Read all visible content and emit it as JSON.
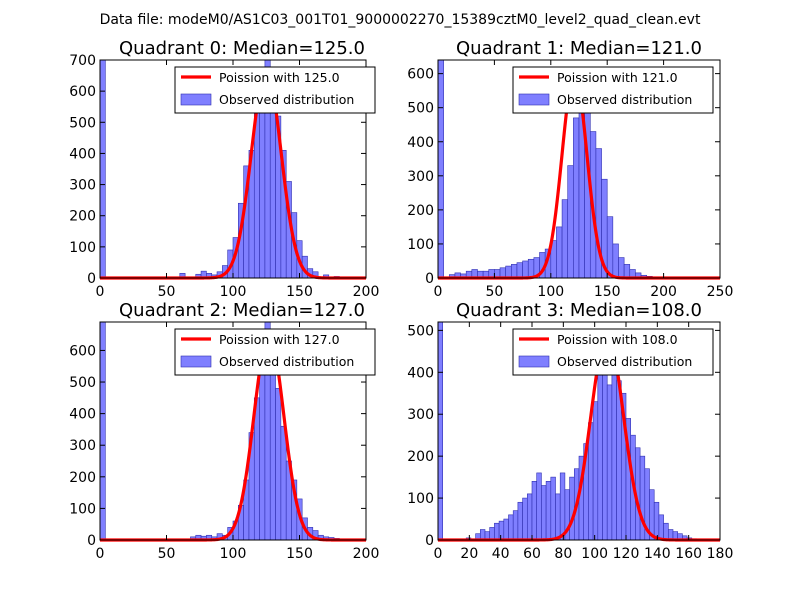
{
  "figure": {
    "suptitle": "Data file: modeM0/AS1C03_001T01_9000002270_15389cztM0_level2_quad_clean.evt"
  },
  "colors": {
    "bar_fill": "#7f7fff",
    "bar_edge": "#2f2fb0",
    "curve": "#ff0000"
  },
  "chart_data": [
    {
      "type": "bar",
      "title": "Quadrant 0: Median=125.0",
      "xlim": [
        0,
        200
      ],
      "ylim": [
        0,
        700
      ],
      "xticks": [
        0,
        50,
        100,
        150,
        200
      ],
      "yticks": [
        0,
        100,
        200,
        300,
        400,
        500,
        600,
        700
      ],
      "bin_width": 4,
      "bins": [
        [
          0,
          700
        ],
        [
          60,
          15
        ],
        [
          72,
          12
        ],
        [
          76,
          22
        ],
        [
          80,
          15
        ],
        [
          84,
          10
        ],
        [
          88,
          20
        ],
        [
          92,
          40
        ],
        [
          96,
          90
        ],
        [
          100,
          130
        ],
        [
          104,
          240
        ],
        [
          108,
          360
        ],
        [
          112,
          410
        ],
        [
          116,
          600
        ],
        [
          120,
          660
        ],
        [
          124,
          700
        ],
        [
          128,
          600
        ],
        [
          132,
          520
        ],
        [
          136,
          410
        ],
        [
          140,
          310
        ],
        [
          144,
          210
        ],
        [
          148,
          120
        ],
        [
          152,
          70
        ],
        [
          156,
          30
        ],
        [
          160,
          20
        ],
        [
          168,
          10
        ],
        [
          176,
          5
        ],
        [
          184,
          3
        ]
      ],
      "poisson_mean": 125,
      "poisson_peak": 665,
      "legend": [
        "Poission with 125.0",
        "Observed distribution"
      ]
    },
    {
      "type": "bar",
      "title": "Quadrant 1: Median=121.0",
      "xlim": [
        0,
        250
      ],
      "ylim": [
        0,
        640
      ],
      "xticks": [
        0,
        50,
        100,
        150,
        200,
        250
      ],
      "yticks": [
        0,
        100,
        200,
        300,
        400,
        500,
        600
      ],
      "bin_width": 5,
      "bins": [
        [
          0,
          640
        ],
        [
          10,
          10
        ],
        [
          15,
          15
        ],
        [
          20,
          12
        ],
        [
          25,
          20
        ],
        [
          30,
          25
        ],
        [
          35,
          20
        ],
        [
          40,
          20
        ],
        [
          45,
          25
        ],
        [
          50,
          25
        ],
        [
          55,
          30
        ],
        [
          60,
          35
        ],
        [
          65,
          40
        ],
        [
          70,
          45
        ],
        [
          75,
          50
        ],
        [
          80,
          55
        ],
        [
          85,
          60
        ],
        [
          90,
          75
        ],
        [
          95,
          85
        ],
        [
          100,
          110
        ],
        [
          105,
          150
        ],
        [
          110,
          230
        ],
        [
          115,
          330
        ],
        [
          120,
          470
        ],
        [
          125,
          610
        ],
        [
          130,
          570
        ],
        [
          135,
          430
        ],
        [
          140,
          380
        ],
        [
          145,
          290
        ],
        [
          150,
          180
        ],
        [
          155,
          100
        ],
        [
          160,
          60
        ],
        [
          165,
          40
        ],
        [
          170,
          25
        ],
        [
          175,
          15
        ],
        [
          180,
          8
        ],
        [
          185,
          5
        ],
        [
          190,
          3
        ],
        [
          195,
          2
        ]
      ],
      "poisson_mean": 121,
      "poisson_peak": 600,
      "legend": [
        "Poission with 121.0",
        "Observed distribution"
      ]
    },
    {
      "type": "bar",
      "title": "Quadrant 2: Median=127.0",
      "xlim": [
        0,
        200
      ],
      "ylim": [
        0,
        690
      ],
      "xticks": [
        0,
        50,
        100,
        150,
        200
      ],
      "yticks": [
        0,
        100,
        200,
        300,
        400,
        500,
        600
      ],
      "bin_width": 4,
      "bins": [
        [
          0,
          690
        ],
        [
          68,
          10
        ],
        [
          72,
          15
        ],
        [
          76,
          12
        ],
        [
          80,
          15
        ],
        [
          84,
          10
        ],
        [
          88,
          20
        ],
        [
          92,
          15
        ],
        [
          96,
          40
        ],
        [
          100,
          60
        ],
        [
          104,
          110
        ],
        [
          108,
          190
        ],
        [
          112,
          340
        ],
        [
          116,
          450
        ],
        [
          120,
          560
        ],
        [
          124,
          690
        ],
        [
          128,
          600
        ],
        [
          132,
          480
        ],
        [
          136,
          360
        ],
        [
          140,
          250
        ],
        [
          144,
          190
        ],
        [
          148,
          130
        ],
        [
          152,
          70
        ],
        [
          156,
          40
        ],
        [
          160,
          30
        ],
        [
          164,
          15
        ],
        [
          168,
          10
        ],
        [
          172,
          8
        ],
        [
          176,
          5
        ],
        [
          180,
          3
        ],
        [
          184,
          2
        ]
      ],
      "poisson_mean": 127,
      "poisson_peak": 648,
      "legend": [
        "Poission with 127.0",
        "Observed distribution"
      ]
    },
    {
      "type": "bar",
      "title": "Quadrant 3: Median=108.0",
      "xlim": [
        0,
        180
      ],
      "ylim": [
        0,
        520
      ],
      "xticks": [
        0,
        20,
        40,
        60,
        80,
        100,
        120,
        140,
        160,
        180
      ],
      "yticks": [
        0,
        100,
        200,
        300,
        400,
        500
      ],
      "bin_width": 3,
      "bins": [
        [
          0,
          520
        ],
        [
          18,
          5
        ],
        [
          24,
          15
        ],
        [
          27,
          25
        ],
        [
          30,
          20
        ],
        [
          33,
          30
        ],
        [
          36,
          40
        ],
        [
          39,
          45
        ],
        [
          42,
          50
        ],
        [
          45,
          60
        ],
        [
          48,
          70
        ],
        [
          51,
          90
        ],
        [
          54,
          100
        ],
        [
          57,
          110
        ],
        [
          60,
          140
        ],
        [
          63,
          160
        ],
        [
          66,
          130
        ],
        [
          69,
          140
        ],
        [
          72,
          150
        ],
        [
          75,
          110
        ],
        [
          78,
          160
        ],
        [
          81,
          120
        ],
        [
          84,
          150
        ],
        [
          87,
          170
        ],
        [
          90,
          200
        ],
        [
          93,
          230
        ],
        [
          96,
          280
        ],
        [
          99,
          330
        ],
        [
          102,
          410
        ],
        [
          105,
          480
        ],
        [
          108,
          370
        ],
        [
          111,
          450
        ],
        [
          114,
          380
        ],
        [
          117,
          350
        ],
        [
          120,
          290
        ],
        [
          123,
          250
        ],
        [
          126,
          220
        ],
        [
          129,
          200
        ],
        [
          132,
          170
        ],
        [
          135,
          120
        ],
        [
          138,
          90
        ],
        [
          141,
          60
        ],
        [
          144,
          40
        ],
        [
          147,
          25
        ],
        [
          150,
          20
        ],
        [
          153,
          15
        ],
        [
          156,
          10
        ],
        [
          159,
          5
        ],
        [
          162,
          3
        ]
      ],
      "poisson_mean": 108,
      "poisson_peak": 490,
      "legend": [
        "Poission with 108.0",
        "Observed distribution"
      ]
    }
  ]
}
